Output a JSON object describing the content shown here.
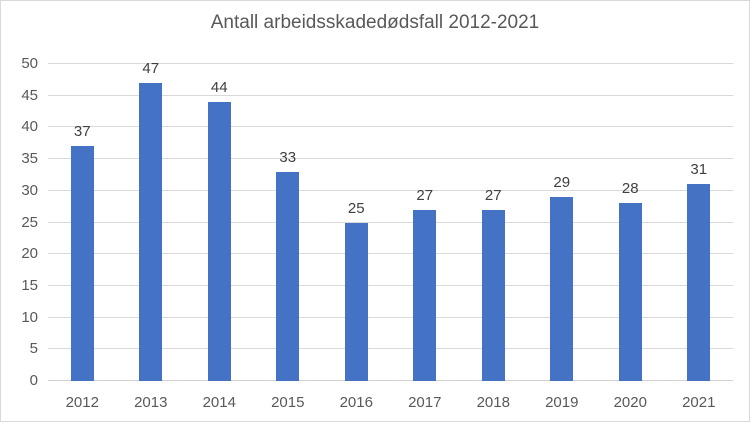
{
  "chart_data": {
    "type": "bar",
    "title": "Antall arbeidsskadedødsfall 2012-2021",
    "categories": [
      "2012",
      "2013",
      "2014",
      "2015",
      "2016",
      "2017",
      "2018",
      "2019",
      "2020",
      "2021"
    ],
    "values": [
      37,
      47,
      44,
      33,
      25,
      27,
      27,
      29,
      28,
      31
    ],
    "xlabel": "",
    "ylabel": "",
    "ylim": [
      0,
      50
    ],
    "yticks": [
      0,
      5,
      10,
      15,
      20,
      25,
      30,
      35,
      40,
      45,
      50
    ],
    "grid": true,
    "legend": false,
    "data_labels": true
  },
  "colors": {
    "bar": "#4472c4",
    "gridline": "#d9d9d9",
    "axis_line": "#d0d0d0",
    "tick_text": "#595959",
    "data_label_text": "#404040",
    "title_text": "#595959",
    "chart_border": "#d9d9d9",
    "background": "#ffffff"
  }
}
